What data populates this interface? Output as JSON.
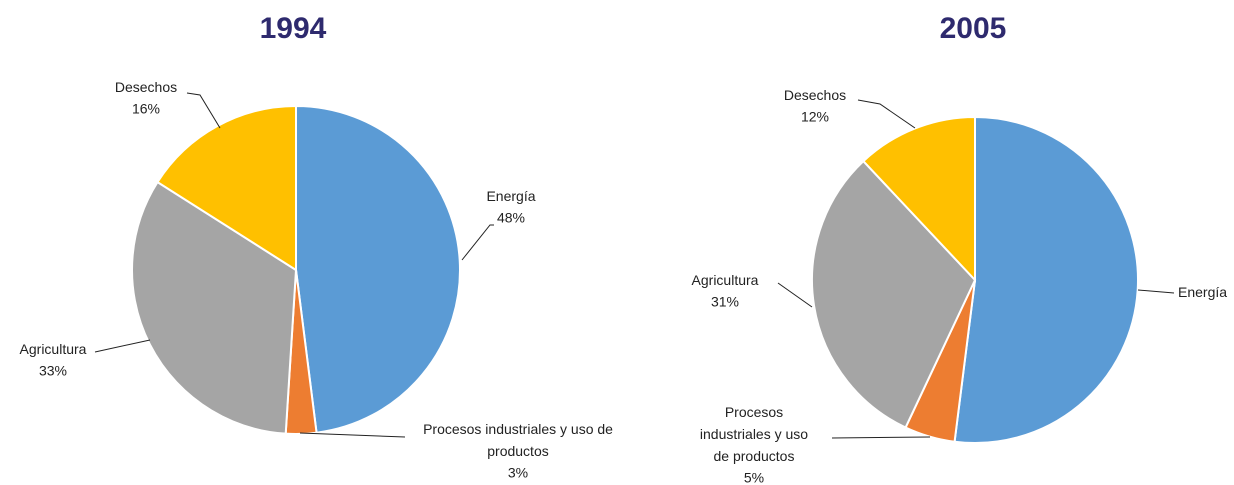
{
  "chart_data": [
    {
      "type": "pie",
      "title": "1994",
      "categories": [
        "Energía",
        "Procesos industriales y uso de productos",
        "Agricultura",
        "Desechos"
      ],
      "values": [
        48,
        3,
        33,
        16
      ],
      "value_labels": [
        "48%",
        "3%",
        "33%",
        "16%"
      ],
      "colors": [
        "#5b9bd5",
        "#ed7d31",
        "#a5a5a5",
        "#ffc000"
      ]
    },
    {
      "type": "pie",
      "title": "2005",
      "categories": [
        "Energía",
        "Procesos industriales y uso de productos",
        "Agricultura",
        "Desechos"
      ],
      "values": [
        52,
        5,
        31,
        12
      ],
      "value_labels": [
        null,
        "5%",
        "31%",
        "12%"
      ],
      "colors": [
        "#5b9bd5",
        "#ed7d31",
        "#a5a5a5",
        "#ffc000"
      ]
    }
  ]
}
